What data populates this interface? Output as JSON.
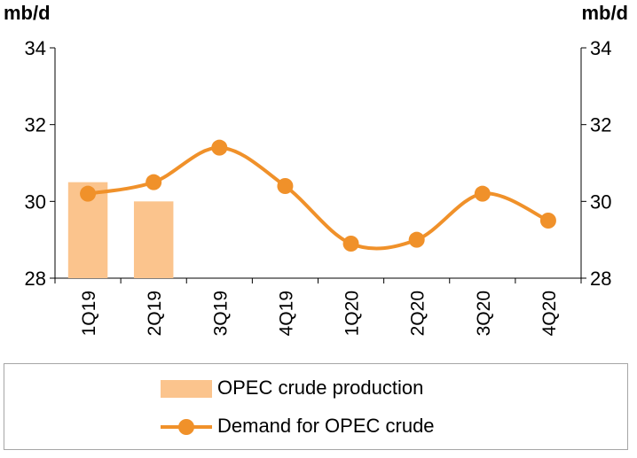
{
  "chart_data": {
    "type": "bar+line",
    "categories": [
      "1Q19",
      "2Q19",
      "3Q19",
      "4Q19",
      "1Q20",
      "2Q20",
      "3Q20",
      "4Q20"
    ],
    "series": [
      {
        "name": "OPEC crude production",
        "type": "bar",
        "axis": "left",
        "color": "#fbc48d",
        "values": [
          30.5,
          30.0,
          null,
          null,
          null,
          null,
          null,
          null
        ]
      },
      {
        "name": "Demand for OPEC crude",
        "type": "line",
        "axis": "right",
        "color": "#f0912a",
        "smooth": true,
        "marker": "circle",
        "values": [
          30.2,
          30.5,
          31.4,
          30.4,
          28.9,
          29.0,
          30.2,
          29.5
        ]
      }
    ],
    "left_axis": {
      "label": "mb/d",
      "ylim": [
        28,
        34
      ],
      "ticks": [
        28,
        30,
        32,
        34
      ]
    },
    "right_axis": {
      "label": "mb/d",
      "ylim": [
        28,
        34
      ],
      "ticks": [
        28,
        30,
        32,
        34
      ]
    },
    "grid": false,
    "legend_position": "bottom"
  }
}
